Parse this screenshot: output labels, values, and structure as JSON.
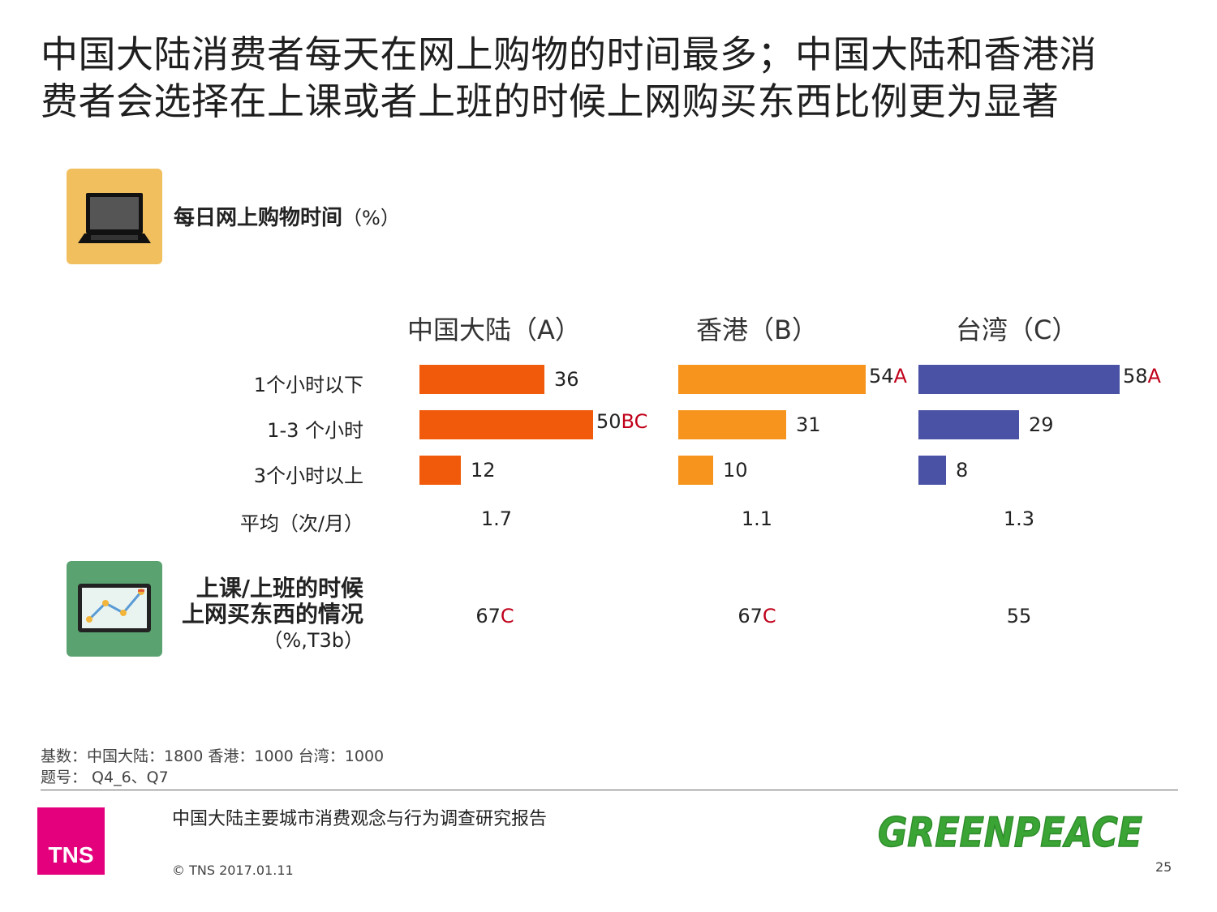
{
  "title": {
    "line1": "中国大陆消费者每天在网上购物的时间最多；中国大陆和香港消",
    "line2": "费者会选择在上课或者上班的时候上网购买东西比例更为显著"
  },
  "section1": {
    "label": "每日网上购物时间",
    "unit": "（%）",
    "icon": "laptop-icon"
  },
  "section2": {
    "label_line1": "上课/上班的时候",
    "label_line2": "上网买东西的情况",
    "unit": "（%,T3b）",
    "icon": "tablet-chart-icon"
  },
  "avg_label": "平均（次/月）",
  "chart_data": {
    "type": "bar",
    "categories": [
      "1个小时以下",
      "1-3 个小时",
      "3个小时以上"
    ],
    "panels": [
      {
        "name": "中国大陆（A）",
        "color": "#f05a0a",
        "values": [
          36,
          50,
          12
        ],
        "sig": [
          "",
          "BC",
          ""
        ],
        "avg": "1.7",
        "t3b": "67",
        "t3b_sig": "C"
      },
      {
        "name": "香港（B）",
        "color": "#f7941d",
        "values": [
          54,
          31,
          10
        ],
        "sig": [
          "A",
          "",
          ""
        ],
        "avg": "1.1",
        "t3b": "67",
        "t3b_sig": "C"
      },
      {
        "name": "台湾（C）",
        "color": "#4a52a6",
        "values": [
          58,
          29,
          8
        ],
        "sig": [
          "A",
          "",
          ""
        ],
        "avg": "1.3",
        "t3b": "55",
        "t3b_sig": ""
      }
    ],
    "sig_color": "#c0001a"
  },
  "footer": {
    "base": "基数：中国大陆：1800  香港：1000  台湾：1000",
    "question": "题号： Q4_6、Q7",
    "report_title": "中国大陆主要城市消费观念与行为调查研究报告",
    "copyright": "© TNS 2017.01.11",
    "page_number": "25",
    "tns_logo": "TNS",
    "greenpeace_logo": "GREENPEACE"
  }
}
